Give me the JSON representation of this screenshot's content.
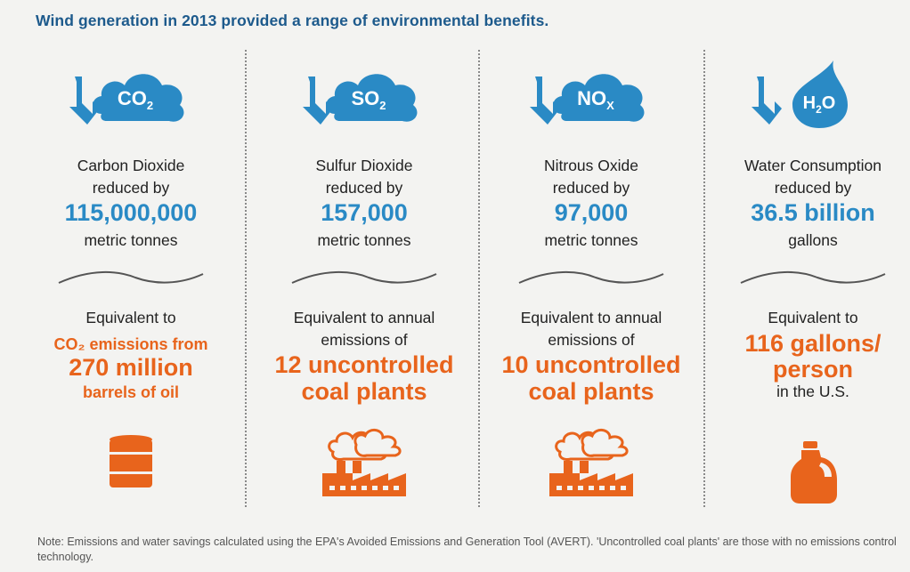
{
  "headline": "Wind generation in 2013 provided a range of environmental benefits.",
  "columns": [
    {
      "icon_label_main": "CO",
      "icon_label_sub": "2",
      "label_line1": "Carbon Dioxide",
      "label_line2": "reduced by",
      "value": "115,000,000",
      "unit": "metric tonnes",
      "equiv_line1": "Equivalent to",
      "equiv_highlight_small1": "CO₂ emissions from",
      "equiv_highlight_big1": "270 million",
      "equiv_highlight_small2": "barrels of oil",
      "bottom_icon": "oil-barrel-icon"
    },
    {
      "icon_label_main": "SO",
      "icon_label_sub": "2",
      "label_line1": "Sulfur Dioxide",
      "label_line2": "reduced by",
      "value": "157,000",
      "unit": "metric tonnes",
      "equiv_line1": "Equivalent to annual",
      "equiv_line2": "emissions of",
      "equiv_highlight_big1": "12 uncontrolled",
      "equiv_highlight_big2": "coal plants",
      "bottom_icon": "factory-icon"
    },
    {
      "icon_label_main": "NO",
      "icon_label_sub": "X",
      "label_line1": "Nitrous Oxide",
      "label_line2": "reduced by",
      "value": "97,000",
      "unit": "metric tonnes",
      "equiv_line1": "Equivalent to annual",
      "equiv_line2": "emissions of",
      "equiv_highlight_big1": "10 uncontrolled",
      "equiv_highlight_big2": "coal plants",
      "bottom_icon": "factory-icon"
    },
    {
      "icon_label_main": "H",
      "icon_label_sub": "2",
      "icon_label_tail": "O",
      "label_line1": "Water Consumption",
      "label_line2": "reduced by",
      "value": "36.5 billion",
      "unit": "gallons",
      "equiv_line1": "Equivalent to",
      "equiv_highlight_big1": "116 gallons/",
      "equiv_highlight_big2": "person",
      "equiv_after": "in the U.S.",
      "bottom_icon": "milk-jug-icon"
    }
  ],
  "colors": {
    "blue": "#2a8ac5",
    "title_blue": "#1d5a8c",
    "orange": "#e8641c"
  },
  "note": "Note: Emissions and water savings calculated using the EPA's Avoided Emissions and Generation Tool (AVERT).  'Uncontrolled coal plants' are those with no emissions control technology."
}
